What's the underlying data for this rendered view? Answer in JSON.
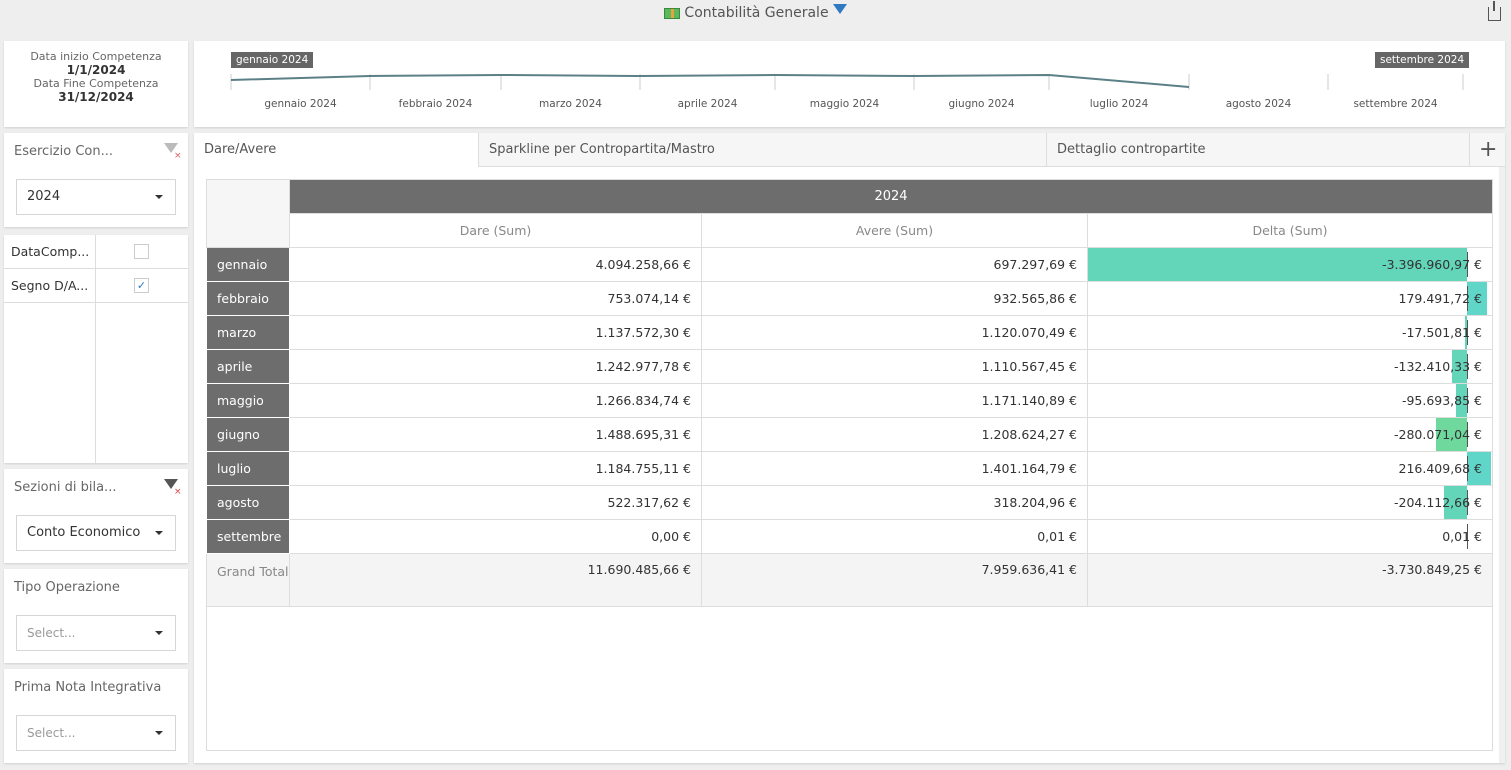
{
  "header": {
    "title": "Contabilità Generale",
    "icon": "money-icon",
    "filter_icon": "funnel-icon",
    "share_icon": "share-icon"
  },
  "dates": {
    "start_label": "Data inizio Competenza",
    "start_value": "1/1/2024",
    "end_label": "Data Fine Competenza",
    "end_value": "31/12/2024"
  },
  "timeline": {
    "start_flag": "gennaio 2024",
    "end_flag": "settembre 2024",
    "months": [
      "gennaio 2024",
      "febbraio 2024",
      "marzo 2024",
      "aprile 2024",
      "maggio 2024",
      "giugno 2024",
      "luglio 2024",
      "agosto 2024",
      "settembre 2024"
    ]
  },
  "filters": {
    "esercizio": {
      "label": "Esercizio Con...",
      "value": "2024"
    },
    "checks": [
      {
        "label": "DataComp...",
        "checked": false
      },
      {
        "label": "Segno D/A...",
        "checked": true
      }
    ],
    "sezioni": {
      "label": "Sezioni di bila...",
      "value": "Conto Economico"
    },
    "tipo": {
      "label": "Tipo Operazione",
      "placeholder": "Select..."
    },
    "prima": {
      "label": "Prima Nota Integrativa",
      "placeholder": "Select..."
    }
  },
  "tabs": [
    "Dare/Avere",
    "Sparkline per Contropartita/Mastro",
    "Dettaglio contropartite"
  ],
  "add_tab": "+",
  "pivot": {
    "year": "2024",
    "columns": [
      "Dare (Sum)",
      "Avere (Sum)",
      "Delta (Sum)"
    ],
    "bar_colors": {
      "positive": "#5fd6c8",
      "negative": "#63d5b8",
      "strong": "#6fd89c"
    },
    "rows": [
      {
        "label": "gennaio",
        "dare": "4.094.258,66 €",
        "avere": "697.297,69 €",
        "delta": "-3.396.960,97 €",
        "delta_value": -3396960.97
      },
      {
        "label": "febbraio",
        "dare": "753.074,14 €",
        "avere": "932.565,86 €",
        "delta": "179.491,72 €",
        "delta_value": 179491.72
      },
      {
        "label": "marzo",
        "dare": "1.137.572,30 €",
        "avere": "1.120.070,49 €",
        "delta": "-17.501,81 €",
        "delta_value": -17501.81
      },
      {
        "label": "aprile",
        "dare": "1.242.977,78 €",
        "avere": "1.110.567,45 €",
        "delta": "-132.410,33 €",
        "delta_value": -132410.33
      },
      {
        "label": "maggio",
        "dare": "1.266.834,74 €",
        "avere": "1.171.140,89 €",
        "delta": "-95.693,85 €",
        "delta_value": -95693.85
      },
      {
        "label": "giugno",
        "dare": "1.488.695,31 €",
        "avere": "1.208.624,27 €",
        "delta": "-280.071,04 €",
        "delta_value": -280071.04
      },
      {
        "label": "luglio",
        "dare": "1.184.755,11 €",
        "avere": "1.401.164,79 €",
        "delta": "216.409,68 €",
        "delta_value": 216409.68
      },
      {
        "label": "agosto",
        "dare": "522.317,62 €",
        "avere": "318.204,96 €",
        "delta": "-204.112,66 €",
        "delta_value": -204112.66
      },
      {
        "label": "settembre",
        "dare": "0,00 €",
        "avere": "0,01 €",
        "delta": "0,01 €",
        "delta_value": 0.01
      }
    ],
    "total": {
      "label": "Grand Total",
      "dare": "11.690.485,66 €",
      "avere": "7.959.636,41 €",
      "delta": "-3.730.849,25 €"
    }
  }
}
